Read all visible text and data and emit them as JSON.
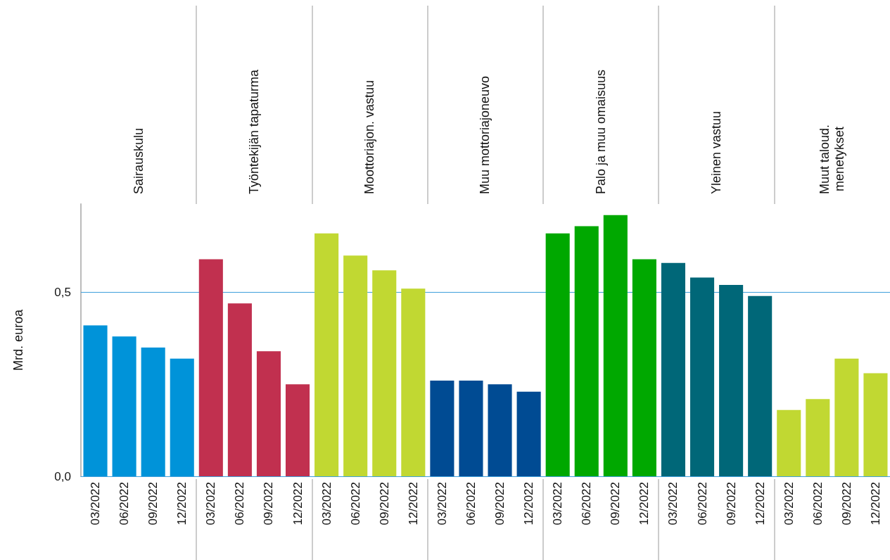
{
  "chart_data": {
    "type": "bar",
    "ylabel": "Mrd. euroa",
    "annotations": [
      "Sairauskulu",
      "Työntekijän tapaturma",
      "Moottoriajon. vastuu",
      "Muu mottoriajoneuvo",
      "Palo ja muu omaisuus",
      "Yleinen vastuu",
      "Muut taloud.\nmenetykset"
    ],
    "categories": [
      "03/2022",
      "06/2022",
      "09/2022",
      "12/2022",
      "03/2022",
      "06/2022",
      "09/2022",
      "12/2022",
      "03/2022",
      "06/2022",
      "09/2022",
      "12/2022",
      "03/2022",
      "06/2022",
      "09/2022",
      "12/2022",
      "03/2022",
      "06/2022",
      "09/2022",
      "12/2022",
      "03/2022",
      "06/2022",
      "09/2022",
      "12/2022",
      "03/2022",
      "06/2022",
      "09/2022",
      "12/2022"
    ],
    "values": [
      0.41,
      0.38,
      0.35,
      0.32,
      0.59,
      0.47,
      0.34,
      0.25,
      0.66,
      0.6,
      0.56,
      0.51,
      0.26,
      0.26,
      0.25,
      0.23,
      0.66,
      0.68,
      0.71,
      0.59,
      0.58,
      0.54,
      0.52,
      0.49,
      0.18,
      0.21,
      0.32,
      0.28
    ],
    "colors": [
      "#0093d9",
      "#0093d9",
      "#0093d9",
      "#0093d9",
      "#c1304f",
      "#c1304f",
      "#c1304f",
      "#c1304f",
      "#c1d832",
      "#c1d832",
      "#c1d832",
      "#c1d832",
      "#004b93",
      "#004b93",
      "#004b93",
      "#004b93",
      "#00a800",
      "#00a800",
      "#00a800",
      "#00a800",
      "#006778",
      "#006778",
      "#006778",
      "#006778",
      "#c1d832",
      "#c1d832",
      "#c1d832",
      "#c1d832"
    ],
    "ylim": [
      0,
      0.74
    ],
    "yticks": [
      {
        "value": 0,
        "label": "0,0"
      },
      {
        "value": 0.5,
        "label": "0,5"
      }
    ],
    "ref_lines": [
      {
        "axis": "y",
        "value": 0.5,
        "color": "#3fa0dc"
      }
    ]
  }
}
